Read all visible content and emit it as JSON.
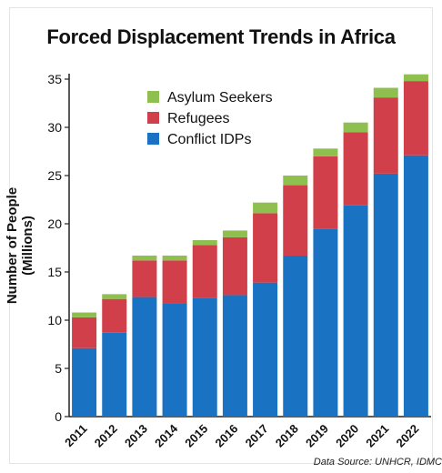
{
  "chart_data": {
    "type": "bar",
    "stacked": true,
    "title": "Forced Displacement Trends in Africa",
    "ylabel": "Number of People\n(Millions)",
    "xlabel": "",
    "source": "Data Source: UNHCR, IDMC",
    "categories": [
      "2011",
      "2012",
      "2013",
      "2014",
      "2015",
      "2016",
      "2017",
      "2018",
      "2019",
      "2020",
      "2021",
      "2022"
    ],
    "ylim": [
      0,
      35
    ],
    "yticks": [
      0,
      5,
      10,
      15,
      20,
      25,
      30,
      35
    ],
    "grid": false,
    "legend_position": "top-left",
    "series": [
      {
        "name": "Conflict IDPs",
        "color": "#1a73c2",
        "values": [
          7.1,
          8.7,
          12.4,
          11.7,
          12.3,
          12.6,
          13.9,
          16.7,
          19.5,
          21.9,
          25.2,
          27.1
        ]
      },
      {
        "name": "Refugees",
        "color": "#d1404a",
        "values": [
          3.2,
          3.5,
          3.8,
          4.5,
          5.5,
          6.0,
          7.2,
          7.3,
          7.5,
          7.6,
          7.9,
          7.7
        ]
      },
      {
        "name": "Asylum Seekers",
        "color": "#8fbf4e",
        "values": [
          0.5,
          0.5,
          0.5,
          0.5,
          0.5,
          0.7,
          1.1,
          1.0,
          0.8,
          1.0,
          1.0,
          0.7
        ]
      }
    ],
    "legend_order": [
      "Asylum Seekers",
      "Refugees",
      "Conflict IDPs"
    ]
  }
}
